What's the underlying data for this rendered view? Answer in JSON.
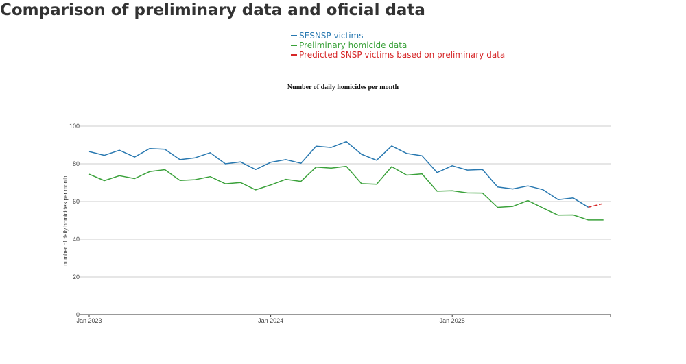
{
  "page": {
    "title": "Comparison of preliminary data and oficial data"
  },
  "colors": {
    "sesnsp": "#2878b0",
    "preliminary": "#3aa13a",
    "predicted": "#d62728",
    "grid": "#cccccc"
  },
  "chart_data": {
    "type": "line",
    "title": "Number of daily homicides per month",
    "xlabel": "",
    "ylabel": "number of daily homicides per month",
    "ylim": [
      0,
      100
    ],
    "yticks": [
      0,
      20,
      40,
      60,
      80,
      100
    ],
    "xlim": [
      "2023-01",
      "2026-06"
    ],
    "xticks": [
      {
        "date": "2023-01",
        "label": "Jan 2023"
      },
      {
        "date": "2024-01",
        "label": "Jan 2024"
      },
      {
        "date": "2025-01",
        "label": "Jan 2025"
      }
    ],
    "grid": true,
    "legend_position": "top-center",
    "series": [
      {
        "name": "SESNSP victims",
        "style": "solid",
        "x": [
          "2023-01",
          "2023-02",
          "2023-03",
          "2023-04",
          "2023-05",
          "2023-06",
          "2023-07",
          "2023-08",
          "2023-09",
          "2023-10",
          "2023-11",
          "2023-12",
          "2024-01",
          "2024-02",
          "2024-03",
          "2024-04",
          "2024-05",
          "2024-06",
          "2024-07",
          "2024-08",
          "2024-09",
          "2024-10",
          "2024-11",
          "2024-12",
          "2025-01",
          "2025-02",
          "2025-03",
          "2025-04",
          "2025-05",
          "2025-06",
          "2025-07",
          "2025-08",
          "2025-09",
          "2025-10",
          "2025-11"
        ],
        "y": [
          86.5,
          84.5,
          87.2,
          83.6,
          88.1,
          87.7,
          82.2,
          83.2,
          85.9,
          80.0,
          81.0,
          77.0,
          80.8,
          82.2,
          80.3,
          89.4,
          88.7,
          91.8,
          85.1,
          81.9,
          89.5,
          85.5,
          84.3,
          75.4,
          79.0,
          76.7,
          77.0,
          67.7,
          66.7,
          68.3,
          66.3,
          61.0,
          61.9,
          57.0,
          null
        ]
      },
      {
        "name": "Preliminary homicide data",
        "style": "solid",
        "x": [
          "2023-01",
          "2023-02",
          "2023-03",
          "2023-04",
          "2023-05",
          "2023-06",
          "2023-07",
          "2023-08",
          "2023-09",
          "2023-10",
          "2023-11",
          "2023-12",
          "2024-01",
          "2024-02",
          "2024-03",
          "2024-04",
          "2024-05",
          "2024-06",
          "2024-07",
          "2024-08",
          "2024-09",
          "2024-10",
          "2024-11",
          "2024-12",
          "2025-01",
          "2025-02",
          "2025-03",
          "2025-04",
          "2025-05",
          "2025-06",
          "2025-07",
          "2025-08",
          "2025-09",
          "2025-10",
          "2025-11"
        ],
        "y": [
          74.5,
          71.1,
          73.7,
          72.2,
          75.9,
          76.9,
          71.2,
          71.6,
          73.2,
          69.4,
          70.1,
          66.2,
          68.8,
          71.8,
          70.7,
          78.3,
          77.7,
          78.7,
          69.5,
          69.2,
          78.5,
          74.0,
          74.7,
          65.5,
          65.7,
          64.6,
          64.5,
          56.9,
          57.4,
          60.5,
          56.6,
          52.8,
          52.9,
          50.2,
          50.2
        ]
      },
      {
        "name": "Predicted SNSP victims based on preliminary data",
        "style": "dashed",
        "x": [
          "2025-10",
          "2025-11"
        ],
        "y": [
          57.0,
          59.0
        ]
      }
    ]
  }
}
